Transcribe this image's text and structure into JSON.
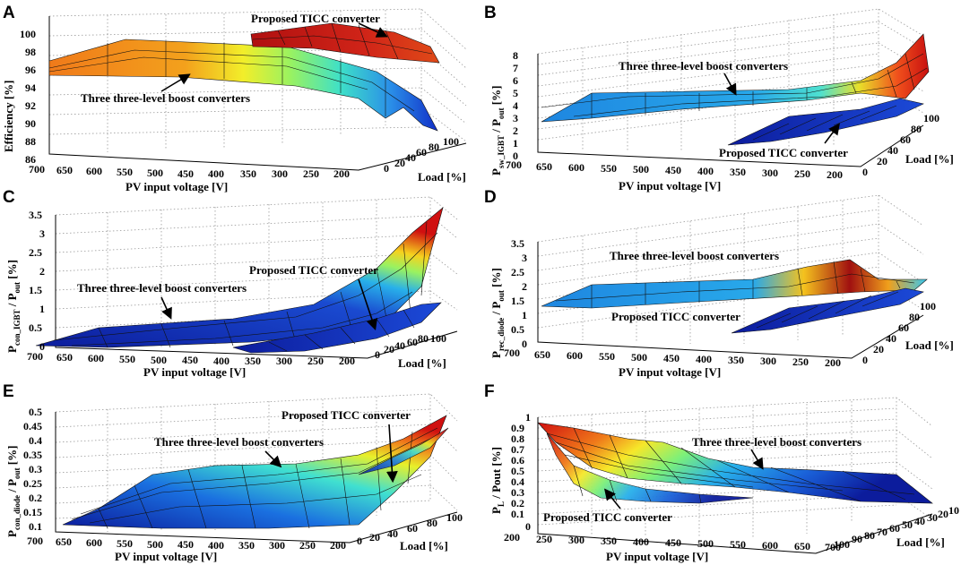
{
  "chart_data": [
    {
      "type": "surface3d",
      "panel": "A",
      "zlabel": "Efficiency [%]",
      "xlabel": "PV input voltage [V]",
      "ylabel": "Load [%]",
      "x_ticks": [
        "700",
        "650",
        "600",
        "550",
        "500",
        "450",
        "400",
        "350",
        "300",
        "250",
        "200"
      ],
      "y_ticks": [
        "0",
        "20",
        "40",
        "60",
        "80",
        "100"
      ],
      "z_ticks": [
        "86",
        "88",
        "90",
        "92",
        "94",
        "96",
        "98",
        "100"
      ],
      "zlim": [
        86,
        100
      ],
      "series": [
        {
          "name": "Three three-level boost converters",
          "x": [
            700,
            650,
            600,
            550,
            500,
            450,
            400,
            350,
            300,
            250,
            200
          ],
          "z_at_full_load": [
            97.0,
            97.1,
            97.2,
            97.2,
            97.2,
            97.1,
            97.0,
            96.6,
            96.0,
            94.8,
            92.5
          ],
          "z_at_low_load": [
            96.8,
            96.6,
            96.4,
            96.2,
            95.8,
            95.4,
            94.8,
            94.0,
            92.8,
            91.2,
            89.0
          ]
        },
        {
          "name": "Proposed TICC converter",
          "x": [
            350,
            300,
            250,
            200
          ],
          "z_at_full_load": [
            99.0,
            99.2,
            99.2,
            98.9
          ],
          "z_at_low_load": [
            98.6,
            98.9,
            98.9,
            98.5
          ]
        }
      ],
      "annotations": [
        "Proposed TICC converter",
        "Three three-level boost converters"
      ]
    },
    {
      "type": "surface3d",
      "panel": "B",
      "zlabel_main": "P",
      "zlabel_sub": "sw_IGBT",
      "zlabel_mid": " / P",
      "zlabel_sub2": "out",
      "zlabel_unit": " [%]",
      "xlabel": "PV input voltage [V]",
      "ylabel": "Load [%]",
      "x_ticks": [
        "700",
        "650",
        "600",
        "550",
        "500",
        "450",
        "400",
        "350",
        "300",
        "250",
        "200"
      ],
      "y_ticks": [
        "0",
        "20",
        "40",
        "60",
        "80",
        "100"
      ],
      "z_ticks": [
        "0",
        "1",
        "2",
        "3",
        "4",
        "5",
        "6",
        "7",
        "8"
      ],
      "zlim": [
        0,
        8
      ],
      "series": [
        {
          "name": "Three three-level boost converters",
          "x": [
            700,
            600,
            500,
            400,
            300,
            250,
            200
          ],
          "z_at_full_load": [
            2.5,
            2.6,
            2.8,
            3.0,
            3.5,
            4.5,
            7.8
          ],
          "z_at_low_load": [
            2.4,
            2.5,
            2.6,
            2.8,
            3.2,
            4.0,
            5.5
          ]
        },
        {
          "name": "Proposed TICC converter",
          "x": [
            400,
            300,
            200
          ],
          "z_at_full_load": [
            1.0,
            1.2,
            2.2
          ],
          "z_at_low_load": [
            0.8,
            1.0,
            1.8
          ]
        }
      ],
      "annotations": [
        "Three three-level boost converters",
        "Proposed TICC converter"
      ]
    },
    {
      "type": "surface3d",
      "panel": "C",
      "zlabel_main": "P",
      "zlabel_sub": "con_IGBT",
      "zlabel_mid": " / P",
      "zlabel_sub2": "out",
      "zlabel_unit": " [%]",
      "xlabel": "PV input voltage [V]",
      "ylabel": "Load [%]",
      "x_ticks": [
        "700",
        "650",
        "600",
        "550",
        "500",
        "450",
        "400",
        "350",
        "300",
        "250",
        "200"
      ],
      "y_ticks": [
        "0",
        "20",
        "40",
        "60",
        "80",
        "100"
      ],
      "z_ticks": [
        "0",
        "0.5",
        "1",
        "1.5",
        "2",
        "2.5",
        "3",
        "3.5"
      ],
      "zlim": [
        0,
        3.5
      ],
      "series": [
        {
          "name": "Three three-level boost converters",
          "x": [
            700,
            600,
            500,
            400,
            300,
            250,
            200
          ],
          "z_at_full_load": [
            0.2,
            0.3,
            0.4,
            0.6,
            1.0,
            1.6,
            3.5
          ],
          "z_at_low_load": [
            0.1,
            0.1,
            0.2,
            0.3,
            0.4,
            0.6,
            1.0
          ]
        },
        {
          "name": "Proposed TICC converter",
          "x": [
            350,
            300,
            250,
            200
          ],
          "z_at_full_load": [
            0.1,
            0.2,
            0.4,
            1.2
          ],
          "z_at_low_load": [
            0.05,
            0.1,
            0.1,
            0.2
          ]
        }
      ],
      "annotations": [
        "Proposed TICC converter",
        "Three three-level boost converters"
      ]
    },
    {
      "type": "surface3d",
      "panel": "D",
      "zlabel_main": "P",
      "zlabel_sub": "rec_diode",
      "zlabel_mid": " / P",
      "zlabel_sub2": "out",
      "zlabel_unit": " [%]",
      "xlabel": "PV input voltage [V]",
      "ylabel": "Load [%]",
      "x_ticks": [
        "700",
        "650",
        "600",
        "550",
        "500",
        "450",
        "400",
        "350",
        "300",
        "250",
        "200"
      ],
      "y_ticks": [
        "0",
        "20",
        "40",
        "60",
        "80",
        "100"
      ],
      "z_ticks": [
        "0",
        "0.5",
        "1",
        "1.5",
        "2",
        "2.5",
        "3",
        "3.5"
      ],
      "zlim": [
        0,
        3.5
      ],
      "series": [
        {
          "name": "Three three-level boost converters",
          "x": [
            700,
            600,
            500,
            400,
            300,
            250,
            200
          ],
          "z_at_full_load": [
            1.1,
            1.1,
            1.2,
            1.3,
            1.5,
            2.1,
            1.2
          ],
          "z_at_low_load": [
            1.0,
            1.0,
            1.1,
            1.1,
            1.2,
            1.3,
            1.1
          ]
        },
        {
          "name": "Proposed TICC converter",
          "x": [
            350,
            300,
            250,
            200
          ],
          "z_at_full_load": [
            0.6,
            0.7,
            0.8,
            0.9
          ],
          "z_at_low_load": [
            0.3,
            0.3,
            0.4,
            0.4
          ]
        }
      ],
      "annotations": [
        "Three three-level boost converters",
        "Proposed TICC converter"
      ]
    },
    {
      "type": "surface3d",
      "panel": "E",
      "zlabel_main": "P",
      "zlabel_sub": "con_diode",
      "zlabel_mid": " / P",
      "zlabel_sub2": "out",
      "zlabel_unit": " [%]",
      "xlabel": "PV input voltage [V]",
      "ylabel": "Load [%]",
      "x_ticks": [
        "700",
        "650",
        "600",
        "550",
        "500",
        "450",
        "400",
        "350",
        "300",
        "250",
        "200"
      ],
      "y_ticks": [
        "0",
        "20",
        "40",
        "60",
        "80",
        "100"
      ],
      "z_ticks": [
        "0.1",
        "0.15",
        "0.2",
        "0.25",
        "0.3",
        "0.35",
        "0.4",
        "0.45",
        "0.5"
      ],
      "zlim": [
        0.1,
        0.5
      ],
      "series": [
        {
          "name": "Three three-level boost converters",
          "x": [
            700,
            600,
            500,
            400,
            300,
            200
          ],
          "z_at_full_load": [
            0.28,
            0.29,
            0.29,
            0.3,
            0.33,
            0.42
          ],
          "z_at_low_load": [
            0.1,
            0.11,
            0.12,
            0.13,
            0.17,
            0.3
          ]
        },
        {
          "name": "Proposed TICC converter",
          "x": [
            300,
            250,
            200
          ],
          "z_at_full_load": [
            0.34,
            0.36,
            0.38
          ],
          "z_at_low_load": [
            0.15,
            0.18,
            0.22
          ]
        }
      ],
      "annotations": [
        "Proposed TICC converter",
        "Three three-level boost converters"
      ]
    },
    {
      "type": "surface3d",
      "panel": "F",
      "zlabel_main": "P",
      "zlabel_sub": "L",
      "zlabel_mid": " / Pout [%]",
      "xlabel": "PV input voltage [V]",
      "ylabel": "Load [%]",
      "x_ticks": [
        "200",
        "250",
        "300",
        "350",
        "400",
        "450",
        "500",
        "550",
        "600",
        "650",
        "700"
      ],
      "y_ticks": [
        "100",
        "90",
        "80",
        "70",
        "60",
        "50",
        "40",
        "30",
        "20",
        "10"
      ],
      "z_ticks": [
        "0",
        "0.1",
        "0.2",
        "0.3",
        "0.4",
        "0.5",
        "0.6",
        "0.7",
        "0.8",
        "0.9",
        "1"
      ],
      "zlim": [
        0,
        1
      ],
      "series": [
        {
          "name": "Three three-level boost converters",
          "x": [
            200,
            300,
            400,
            500,
            600,
            700
          ],
          "z_at_full_load": [
            0.95,
            0.85,
            0.62,
            0.38,
            0.25,
            0.1
          ],
          "z_at_low_load": [
            0.95,
            0.75,
            0.45,
            0.25,
            0.15,
            0.05
          ]
        },
        {
          "name": "Proposed TICC converter",
          "x": [
            200,
            250,
            300,
            350,
            400
          ],
          "z_at_full_load": [
            0.95,
            0.55,
            0.3,
            0.2,
            0.15
          ],
          "z_at_low_load": [
            0.95,
            0.4,
            0.15,
            0.1,
            0.05
          ]
        }
      ],
      "annotations": [
        "Three three-level boost converters",
        "Proposed TICC converter"
      ]
    }
  ]
}
